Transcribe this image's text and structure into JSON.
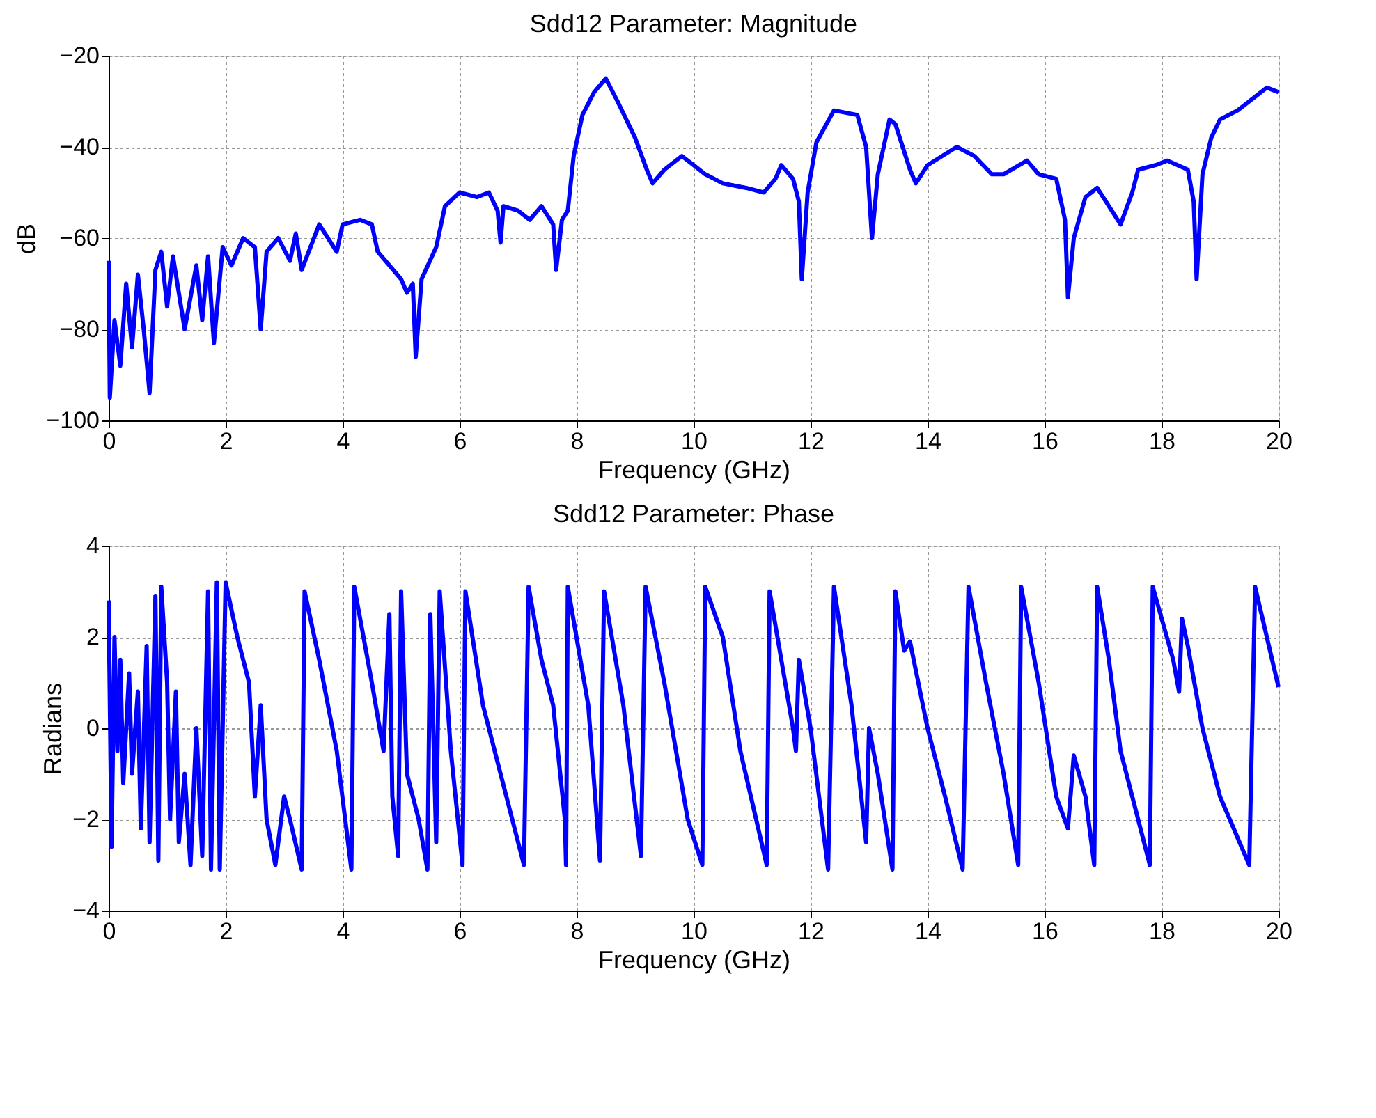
{
  "chart_data": [
    {
      "type": "line",
      "title": "Sdd12 Parameter: Magnitude",
      "xlabel": "Frequency (GHz)",
      "ylabel": "dB",
      "xlim": [
        0,
        20
      ],
      "xticks": [
        0,
        2,
        4,
        6,
        8,
        10,
        12,
        14,
        16,
        18,
        20
      ],
      "ylim": [
        -100,
        -20
      ],
      "yticks": [
        -100,
        -80,
        -60,
        -40,
        -20
      ],
      "grid": true,
      "legend": false,
      "marker": "none",
      "line_style": "solid",
      "series": [
        {
          "color": "#0000ff",
          "x": [
            0,
            0.02,
            0.1,
            0.2,
            0.3,
            0.4,
            0.5,
            0.6,
            0.7,
            0.8,
            0.9,
            1.0,
            1.1,
            1.3,
            1.5,
            1.6,
            1.7,
            1.8,
            1.95,
            2.1,
            2.3,
            2.5,
            2.6,
            2.7,
            2.9,
            3.1,
            3.2,
            3.3,
            3.6,
            3.8,
            3.9,
            4.0,
            4.3,
            4.5,
            4.6,
            4.8,
            5.0,
            5.1,
            5.2,
            5.25,
            5.35,
            5.6,
            5.75,
            6.0,
            6.3,
            6.5,
            6.65,
            6.7,
            6.75,
            7.0,
            7.2,
            7.4,
            7.6,
            7.65,
            7.75,
            7.85,
            7.95,
            8.1,
            8.3,
            8.5,
            8.7,
            9.0,
            9.2,
            9.3,
            9.5,
            9.8,
            10.0,
            10.2,
            10.5,
            10.9,
            11.2,
            11.4,
            11.5,
            11.7,
            11.8,
            11.85,
            11.95,
            12.1,
            12.4,
            12.8,
            12.95,
            13.05,
            13.15,
            13.35,
            13.45,
            13.7,
            13.8,
            14.0,
            14.5,
            14.8,
            15.1,
            15.3,
            15.7,
            15.9,
            16.2,
            16.35,
            16.4,
            16.5,
            16.7,
            16.9,
            17.1,
            17.3,
            17.5,
            17.6,
            17.9,
            18.1,
            18.45,
            18.55,
            18.6,
            18.7,
            18.85,
            19.0,
            19.3,
            19.8,
            20
          ],
          "values": [
            -65,
            -95,
            -78,
            -88,
            -70,
            -84,
            -68,
            -80,
            -94,
            -67,
            -63,
            -75,
            -64,
            -80,
            -66,
            -78,
            -64,
            -83,
            -62,
            -66,
            -60,
            -62,
            -80,
            -63,
            -60,
            -65,
            -59,
            -67,
            -57,
            -61,
            -63,
            -57,
            -56,
            -57,
            -63,
            -66,
            -69,
            -72,
            -70,
            -86,
            -69,
            -62,
            -53,
            -50,
            -51,
            -50,
            -54,
            -61,
            -53,
            -54,
            -56,
            -53,
            -57,
            -67,
            -56,
            -54,
            -42,
            -33,
            -28,
            -25,
            -30,
            -38,
            -45,
            -48,
            -45,
            -42,
            -44,
            -46,
            -48,
            -49,
            -50,
            -47,
            -44,
            -47,
            -52,
            -69,
            -50,
            -39,
            -32,
            -33,
            -40,
            -60,
            -46,
            -34,
            -35,
            -45,
            -48,
            -44,
            -40,
            -42,
            -46,
            -46,
            -43,
            -46,
            -47,
            -56,
            -73,
            -60,
            -51,
            -49,
            -53,
            -57,
            -50,
            -45,
            -44,
            -43,
            -45,
            -52,
            -69,
            -46,
            -38,
            -34,
            -32,
            -27,
            -28
          ]
        }
      ]
    },
    {
      "type": "line",
      "title": "Sdd12 Parameter: Phase",
      "xlabel": "Frequency (GHz)",
      "ylabel": "Radians",
      "xlim": [
        0,
        20
      ],
      "xticks": [
        0,
        2,
        4,
        6,
        8,
        10,
        12,
        14,
        16,
        18,
        20
      ],
      "ylim": [
        -4,
        4
      ],
      "yticks": [
        -4,
        -2,
        0,
        2,
        4
      ],
      "grid": true,
      "legend": false,
      "marker": "none",
      "line_style": "solid",
      "series": [
        {
          "color": "#0000ff",
          "x": [
            0,
            0.05,
            0.1,
            0.15,
            0.2,
            0.25,
            0.35,
            0.4,
            0.5,
            0.55,
            0.65,
            0.7,
            0.8,
            0.85,
            0.9,
            1.0,
            1.05,
            1.15,
            1.2,
            1.3,
            1.4,
            1.5,
            1.6,
            1.7,
            1.75,
            1.85,
            1.9,
            2.0,
            2.2,
            2.4,
            2.5,
            2.6,
            2.7,
            2.85,
            3.0,
            3.1,
            3.3,
            3.35,
            3.6,
            3.9,
            4.15,
            4.2,
            4.5,
            4.7,
            4.8,
            4.85,
            4.95,
            5.0,
            5.1,
            5.3,
            5.45,
            5.5,
            5.6,
            5.66,
            5.85,
            6.05,
            6.1,
            6.4,
            6.7,
            7.1,
            7.18,
            7.4,
            7.6,
            7.8,
            7.82,
            7.85,
            8.2,
            8.4,
            8.47,
            8.8,
            9.1,
            9.18,
            9.5,
            9.9,
            10.15,
            10.2,
            10.5,
            10.8,
            11.25,
            11.3,
            11.5,
            11.7,
            11.75,
            11.8,
            12.0,
            12.3,
            12.4,
            12.7,
            12.95,
            13.0,
            13.15,
            13.4,
            13.45,
            13.6,
            13.7,
            14.0,
            14.3,
            14.6,
            14.7,
            15.0,
            15.3,
            15.55,
            15.6,
            15.9,
            16.2,
            16.4,
            16.5,
            16.7,
            16.85,
            16.9,
            17.1,
            17.2,
            17.3,
            17.4,
            17.8,
            17.85,
            18.2,
            18.3,
            18.35,
            18.45,
            18.7,
            19.0,
            19.5,
            19.6,
            19.8,
            20
          ],
          "values": [
            2.8,
            -2.6,
            2.0,
            -0.5,
            1.5,
            -1.2,
            1.2,
            -1.0,
            0.8,
            -2.2,
            1.8,
            -2.5,
            2.9,
            -2.9,
            3.1,
            1.0,
            -2.0,
            0.8,
            -2.5,
            -1.0,
            -3.0,
            0.0,
            -2.8,
            3.0,
            -3.1,
            3.2,
            -3.1,
            3.2,
            2.0,
            1.0,
            -1.5,
            0.5,
            -2.0,
            -3.0,
            -1.5,
            -2.0,
            -3.1,
            3.0,
            1.5,
            -0.5,
            -3.1,
            3.1,
            1.0,
            -0.5,
            2.5,
            -1.5,
            -2.8,
            3.0,
            -1.0,
            -2.0,
            -3.1,
            2.5,
            -2.5,
            3.0,
            -0.5,
            -3.0,
            3.0,
            0.5,
            -1.0,
            -3.0,
            3.1,
            1.5,
            0.5,
            -2.0,
            -3.0,
            3.1,
            0.5,
            -2.9,
            3.0,
            0.5,
            -2.8,
            3.1,
            1.0,
            -2.0,
            -3.0,
            3.1,
            2.0,
            -0.5,
            -3.0,
            3.0,
            1.5,
            0.0,
            -0.5,
            1.5,
            0.0,
            -3.1,
            3.1,
            0.5,
            -2.5,
            0.0,
            -1.0,
            -3.1,
            3.0,
            1.7,
            1.9,
            0.0,
            -1.5,
            -3.1,
            3.1,
            1.0,
            -1.0,
            -3.0,
            3.1,
            1.0,
            -1.5,
            -2.2,
            -0.6,
            -1.5,
            -3.0,
            3.1,
            1.5,
            0.5,
            -0.5,
            -1.0,
            -3.0,
            3.1,
            1.5,
            0.8,
            2.4,
            1.8,
            0.0,
            -1.5,
            -3.0,
            3.1,
            2.0,
            0.9
          ]
        }
      ]
    }
  ]
}
